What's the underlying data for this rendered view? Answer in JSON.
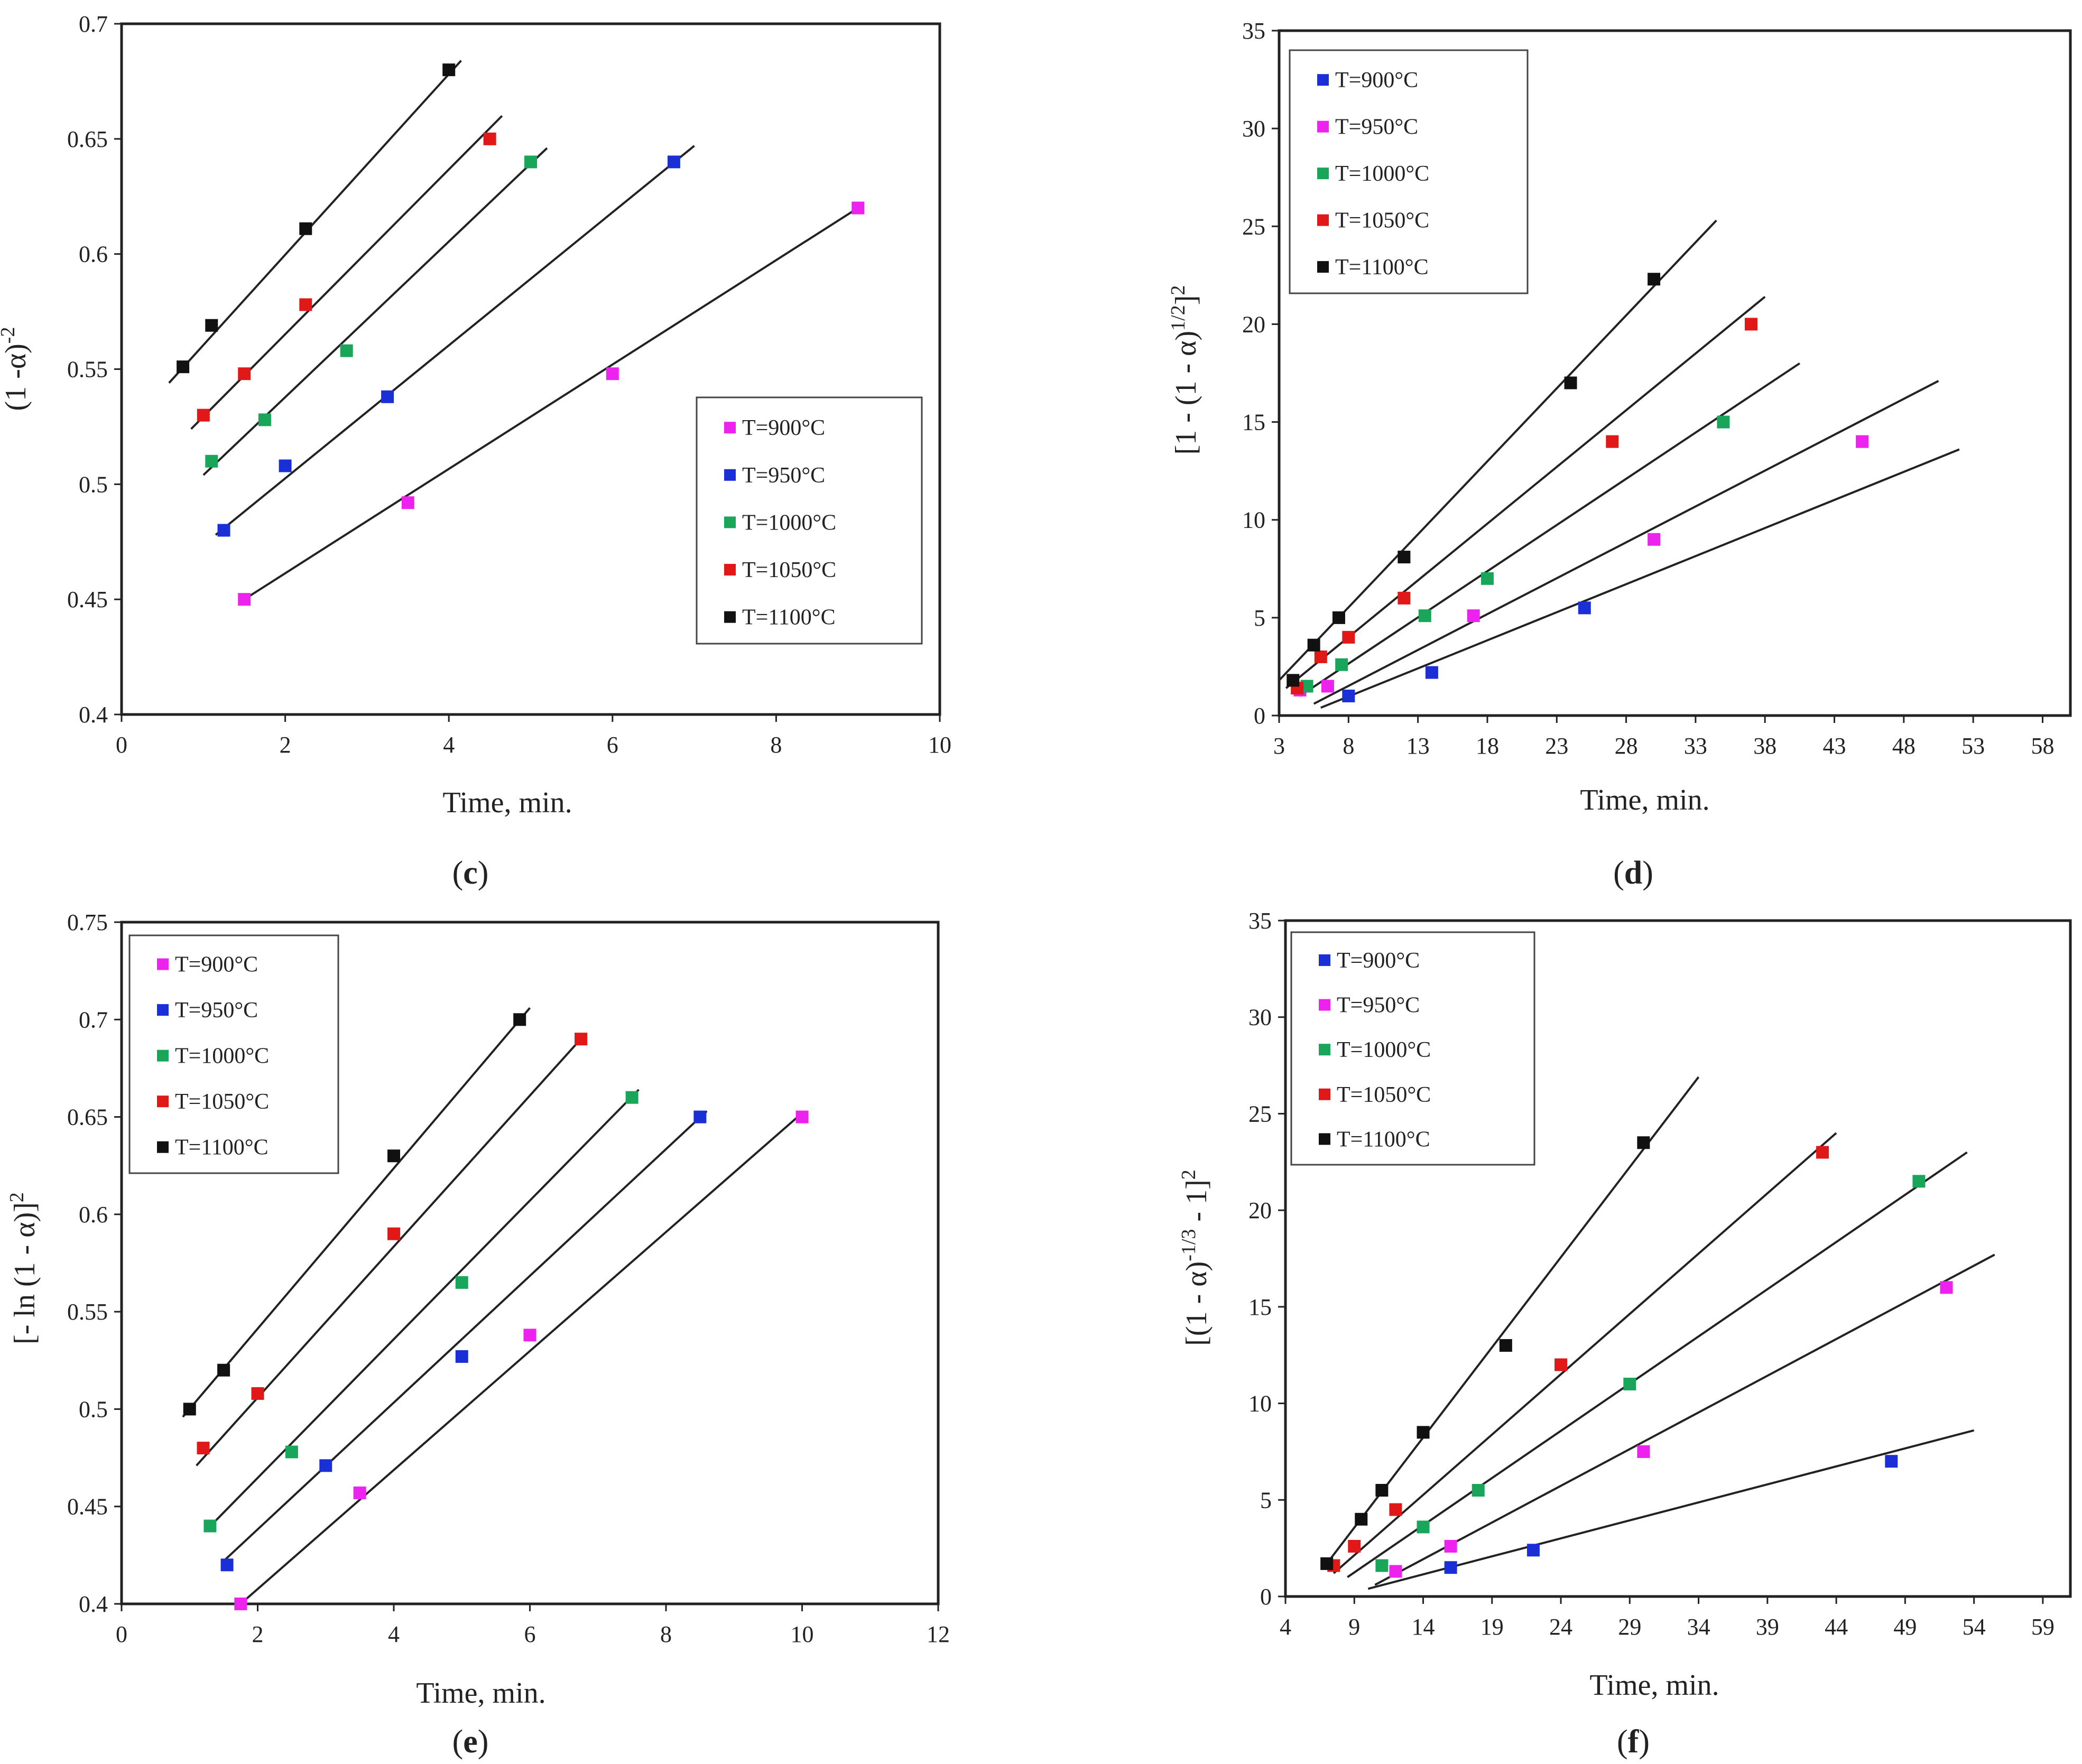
{
  "colors": {
    "T=900°C": "#ee22ee",
    "T=950°C": "#1a2fd6",
    "T=1000°C": "#1aa65a",
    "T=1050°C": "#e01818",
    "T=1100°C": "#111111"
  },
  "chart_data": [
    {
      "id": "c",
      "type": "scatter",
      "panel_label": "c",
      "xlabel": "Time, min.",
      "ylabel_parts": [
        "(1 -α)",
        "-2"
      ],
      "xlim": [
        0,
        10
      ],
      "ylim": [
        0.4,
        0.7
      ],
      "xticks": [
        0,
        2,
        4,
        6,
        8,
        10
      ],
      "yticks": [
        0.4,
        0.45,
        0.5,
        0.55,
        0.6,
        0.65,
        0.7
      ],
      "xtick_labels": [
        "0",
        "2",
        "4",
        "6",
        "8",
        "10"
      ],
      "ytick_labels": [
        "0.4",
        "0.45",
        "0.5",
        "0.55",
        "0.6",
        "0.65",
        "0.7"
      ],
      "legend_position": "center-right",
      "series": [
        {
          "name": "T=900°C",
          "x": [
            1.5,
            3.5,
            6,
            9
          ],
          "y": [
            0.45,
            0.492,
            0.548,
            0.62
          ],
          "fit": [
            [
              1.5,
              0.45
            ],
            [
              9,
              0.62
            ]
          ]
        },
        {
          "name": "T=950°C",
          "x": [
            1.25,
            2,
            3.25,
            6.75
          ],
          "y": [
            0.48,
            0.508,
            0.538,
            0.64
          ],
          "fit": [
            [
              1.15,
              0.478
            ],
            [
              7.0,
              0.647
            ]
          ]
        },
        {
          "name": "T=1000°C",
          "x": [
            1.1,
            1.75,
            2.75,
            5
          ],
          "y": [
            0.51,
            0.528,
            0.558,
            0.64
          ],
          "fit": [
            [
              1.0,
              0.504
            ],
            [
              5.2,
              0.646
            ]
          ]
        },
        {
          "name": "T=1050°C",
          "x": [
            1.0,
            1.5,
            2.25,
            4.5
          ],
          "y": [
            0.53,
            0.548,
            0.578,
            0.65
          ],
          "fit": [
            [
              0.85,
              0.524
            ],
            [
              4.65,
              0.66
            ]
          ]
        },
        {
          "name": "T=1100°C",
          "x": [
            0.75,
            1.1,
            2.25,
            4
          ],
          "y": [
            0.551,
            0.569,
            0.611,
            0.68
          ],
          "fit": [
            [
              0.58,
              0.544
            ],
            [
              4.15,
              0.684
            ]
          ]
        }
      ]
    },
    {
      "id": "d",
      "type": "scatter",
      "panel_label": "d",
      "xlabel": "Time, min.",
      "ylabel_parts": [
        "[1 - (1 - α)",
        "1/2",
        "]",
        "2"
      ],
      "xlim": [
        3,
        60
      ],
      "ylim": [
        0,
        35
      ],
      "xticks": [
        3,
        8,
        13,
        18,
        23,
        28,
        33,
        38,
        43,
        48,
        53,
        58
      ],
      "yticks": [
        0,
        5,
        10,
        15,
        20,
        25,
        30,
        35
      ],
      "xtick_labels": [
        "3",
        "8",
        "13",
        "18",
        "23",
        "28",
        "33",
        "38",
        "43",
        "48",
        "53",
        "58"
      ],
      "ytick_labels": [
        "0",
        "5",
        "10",
        "15",
        "20",
        "25",
        "30",
        "35"
      ],
      "legend_position": "top-left",
      "series": [
        {
          "name": "T=900°C",
          "x": [
            8,
            14,
            25
          ],
          "y": [
            1.0,
            2.2,
            5.5
          ],
          "fit": [
            [
              6,
              0.4
            ],
            [
              52,
              13.6
            ]
          ]
        },
        {
          "name": "T=950°C",
          "x": [
            4.5,
            6.5,
            17,
            30,
            45
          ],
          "y": [
            1.3,
            1.5,
            5.1,
            9.0,
            14.0
          ],
          "fit": [
            [
              5.5,
              0.6
            ],
            [
              50.5,
              17.1
            ]
          ]
        },
        {
          "name": "T=1000°C",
          "x": [
            5,
            7.5,
            13.5,
            18,
            35
          ],
          "y": [
            1.5,
            2.6,
            5.1,
            7.0,
            15.0
          ],
          "fit": [
            [
              4.5,
              1.0
            ],
            [
              40.5,
              18.0
            ]
          ]
        },
        {
          "name": "T=1050°C",
          "x": [
            4.3,
            6,
            8,
            12,
            27,
            37
          ],
          "y": [
            1.4,
            3.0,
            4.0,
            6.0,
            14.0,
            20.0
          ],
          "fit": [
            [
              3.5,
              1.4
            ],
            [
              38,
              21.4
            ]
          ]
        },
        {
          "name": "T=1100°C",
          "x": [
            4,
            5.5,
            7.3,
            12,
            24,
            30
          ],
          "y": [
            1.8,
            3.6,
            5.0,
            8.1,
            17.0,
            22.3
          ],
          "fit": [
            [
              3,
              1.8
            ],
            [
              34.5,
              25.3
            ]
          ]
        }
      ]
    },
    {
      "id": "e",
      "type": "scatter",
      "panel_label": "e",
      "xlabel": "Time, min.",
      "ylabel_parts": [
        "[- ln (1 - α)]",
        "2"
      ],
      "xlim": [
        0,
        12
      ],
      "ylim": [
        0.4,
        0.75
      ],
      "xticks": [
        0,
        2,
        4,
        6,
        8,
        10,
        12
      ],
      "yticks": [
        0.4,
        0.45,
        0.5,
        0.55,
        0.6,
        0.65,
        0.7,
        0.75
      ],
      "xtick_labels": [
        "0",
        "2",
        "4",
        "6",
        "8",
        "10",
        "12"
      ],
      "ytick_labels": [
        "0.4",
        "0.45",
        "0.5",
        "0.55",
        "0.6",
        "0.65",
        "0.7",
        "0.75"
      ],
      "legend_position": "top-left",
      "series": [
        {
          "name": "T=900°C",
          "x": [
            1.75,
            3.5,
            6,
            10
          ],
          "y": [
            0.4,
            0.457,
            0.538,
            0.65
          ],
          "fit": [
            [
              1.75,
              0.4
            ],
            [
              10,
              0.652
            ]
          ]
        },
        {
          "name": "T=950°C",
          "x": [
            1.55,
            3,
            5,
            8.5
          ],
          "y": [
            0.42,
            0.471,
            0.527,
            0.65
          ],
          "fit": [
            [
              1.5,
              0.422
            ],
            [
              8.6,
              0.653
            ]
          ]
        },
        {
          "name": "T=1000°C",
          "x": [
            1.3,
            2.5,
            5,
            7.5
          ],
          "y": [
            0.44,
            0.478,
            0.565,
            0.66
          ],
          "fit": [
            [
              1.25,
              0.438
            ],
            [
              7.6,
              0.664
            ]
          ]
        },
        {
          "name": "T=1050°C",
          "x": [
            1.2,
            2,
            4,
            6.75
          ],
          "y": [
            0.48,
            0.508,
            0.59,
            0.69
          ],
          "fit": [
            [
              1.1,
              0.471
            ],
            [
              6.8,
              0.692
            ]
          ]
        },
        {
          "name": "T=1100°C",
          "x": [
            1.0,
            1.5,
            4,
            5.85
          ],
          "y": [
            0.5,
            0.52,
            0.63,
            0.7
          ],
          "fit": [
            [
              0.9,
              0.496
            ],
            [
              6.0,
              0.706
            ]
          ]
        }
      ]
    },
    {
      "id": "f",
      "type": "scatter",
      "panel_label": "f",
      "xlabel": "Time, min.",
      "ylabel_parts": [
        "[(1 - α)",
        "-1/3",
        " - 1]",
        "2"
      ],
      "xlim": [
        4,
        61
      ],
      "ylim": [
        0,
        35
      ],
      "xticks": [
        4,
        9,
        14,
        19,
        24,
        29,
        34,
        39,
        44,
        49,
        54,
        59
      ],
      "yticks": [
        0,
        5,
        10,
        15,
        20,
        25,
        30,
        35
      ],
      "xtick_labels": [
        "4",
        "9",
        "14",
        "19",
        "24",
        "29",
        "34",
        "39",
        "44",
        "49",
        "54",
        "59"
      ],
      "ytick_labels": [
        "0",
        "5",
        "10",
        "15",
        "20",
        "25",
        "30",
        "35"
      ],
      "legend_position": "top-left",
      "series": [
        {
          "name": "T=900°C",
          "x": [
            16,
            22,
            48
          ],
          "y": [
            1.5,
            2.4,
            7.0
          ],
          "fit": [
            [
              10,
              0.4
            ],
            [
              54,
              8.6
            ]
          ]
        },
        {
          "name": "T=950°C",
          "x": [
            12,
            16,
            30,
            52
          ],
          "y": [
            1.3,
            2.6,
            7.5,
            16.0
          ],
          "fit": [
            [
              10.5,
              0.6
            ],
            [
              55.5,
              17.7
            ]
          ]
        },
        {
          "name": "T=1000°C",
          "x": [
            11,
            14,
            18,
            29,
            50
          ],
          "y": [
            1.6,
            3.6,
            5.5,
            11.0,
            21.5
          ],
          "fit": [
            [
              8.5,
              1.0
            ],
            [
              53.5,
              23.0
            ]
          ]
        },
        {
          "name": "T=1050°C",
          "x": [
            7.5,
            9,
            12,
            24,
            43
          ],
          "y": [
            1.6,
            2.6,
            4.5,
            12.0,
            23.0
          ],
          "fit": [
            [
              7.5,
              1.2
            ],
            [
              44,
              24.0
            ]
          ]
        },
        {
          "name": "T=1100°C",
          "x": [
            7,
            9.5,
            11,
            14,
            20,
            30
          ],
          "y": [
            1.7,
            4.0,
            5.5,
            8.5,
            13.0,
            23.5
          ],
          "fit": [
            [
              7,
              1.7
            ],
            [
              34,
              26.9
            ]
          ]
        }
      ]
    }
  ]
}
